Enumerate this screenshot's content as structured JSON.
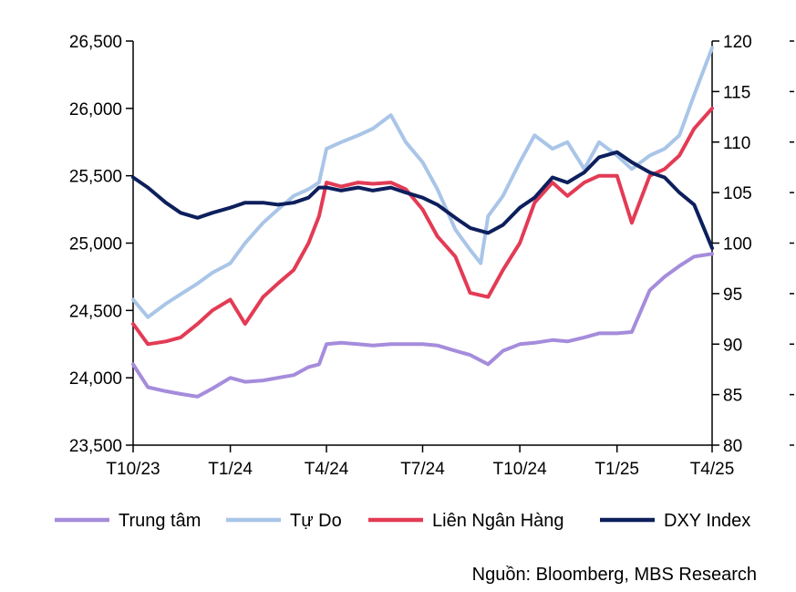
{
  "chart_data": {
    "type": "line",
    "title": "",
    "x_ticks": [
      "T10/23",
      "T1/24",
      "T4/24",
      "T7/24",
      "T10/24",
      "T1/25",
      "T4/25"
    ],
    "x_range": [
      "2023-10-01",
      "2025-04-01"
    ],
    "y_left": {
      "ticks": [
        "23,500",
        "24,000",
        "24,500",
        "25,000",
        "25,500",
        "26,000",
        "26,500"
      ],
      "min": 23500,
      "max": 26500
    },
    "y_right": {
      "ticks": [
        "80",
        "85",
        "90",
        "95",
        "100",
        "105",
        "110",
        "115",
        "120"
      ],
      "min": 80,
      "max": 120
    },
    "grid": false,
    "legend_position": "bottom",
    "series": [
      {
        "name": "Trung tâm",
        "axis": "left",
        "color": "#A58CDC",
        "x": [
          "2023-10-01",
          "2023-10-15",
          "2023-11-01",
          "2023-11-15",
          "2023-12-01",
          "2023-12-15",
          "2024-01-01",
          "2024-01-15",
          "2024-02-01",
          "2024-02-15",
          "2024-03-01",
          "2024-03-15",
          "2024-03-25",
          "2024-04-01",
          "2024-04-15",
          "2024-05-01",
          "2024-05-15",
          "2024-06-01",
          "2024-06-15",
          "2024-07-01",
          "2024-07-15",
          "2024-08-01",
          "2024-08-15",
          "2024-09-01",
          "2024-09-15",
          "2024-10-01",
          "2024-10-15",
          "2024-11-01",
          "2024-11-15",
          "2024-12-01",
          "2024-12-15",
          "2025-01-01",
          "2025-01-15",
          "2025-02-01",
          "2025-02-15",
          "2025-03-01",
          "2025-03-15",
          "2025-04-01"
        ],
        "values": [
          24100,
          23930,
          23900,
          23880,
          23860,
          23920,
          24000,
          23970,
          23980,
          24000,
          24020,
          24080,
          24100,
          24250,
          24260,
          24250,
          24240,
          24250,
          24250,
          24250,
          24240,
          24200,
          24170,
          24100,
          24200,
          24250,
          24260,
          24280,
          24270,
          24300,
          24330,
          24330,
          24340,
          24650,
          24750,
          24830,
          24900,
          24920
        ]
      },
      {
        "name": "Tự Do",
        "axis": "left",
        "color": "#A9C5E8",
        "x": [
          "2023-10-01",
          "2023-10-15",
          "2023-11-01",
          "2023-11-15",
          "2023-12-01",
          "2023-12-15",
          "2024-01-01",
          "2024-01-15",
          "2024-02-01",
          "2024-02-15",
          "2024-03-01",
          "2024-03-15",
          "2024-03-25",
          "2024-04-01",
          "2024-04-15",
          "2024-05-01",
          "2024-05-15",
          "2024-06-01",
          "2024-06-15",
          "2024-07-01",
          "2024-07-15",
          "2024-08-01",
          "2024-08-15",
          "2024-08-25",
          "2024-09-01",
          "2024-09-15",
          "2024-10-01",
          "2024-10-15",
          "2024-11-01",
          "2024-11-15",
          "2024-12-01",
          "2024-12-15",
          "2025-01-01",
          "2025-01-15",
          "2025-02-01",
          "2025-02-15",
          "2025-03-01",
          "2025-03-15",
          "2025-04-01"
        ],
        "values": [
          24580,
          24450,
          24550,
          24620,
          24700,
          24780,
          24850,
          25000,
          25150,
          25250,
          25350,
          25400,
          25450,
          25700,
          25750,
          25800,
          25850,
          25950,
          25750,
          25600,
          25400,
          25100,
          24950,
          24850,
          25200,
          25350,
          25600,
          25800,
          25700,
          25750,
          25550,
          25750,
          25650,
          25550,
          25650,
          25700,
          25800,
          26100,
          26450
        ]
      },
      {
        "name": "Liên Ngân Hàng",
        "axis": "left",
        "color": "#E33B55",
        "x": [
          "2023-10-01",
          "2023-10-15",
          "2023-11-01",
          "2023-11-15",
          "2023-12-01",
          "2023-12-15",
          "2024-01-01",
          "2024-01-15",
          "2024-02-01",
          "2024-02-15",
          "2024-03-01",
          "2024-03-15",
          "2024-03-25",
          "2024-04-01",
          "2024-04-15",
          "2024-05-01",
          "2024-05-15",
          "2024-06-01",
          "2024-06-15",
          "2024-07-01",
          "2024-07-15",
          "2024-08-01",
          "2024-08-15",
          "2024-09-01",
          "2024-09-15",
          "2024-10-01",
          "2024-10-15",
          "2024-11-01",
          "2024-11-15",
          "2024-12-01",
          "2024-12-15",
          "2025-01-01",
          "2025-01-15",
          "2025-02-01",
          "2025-02-15",
          "2025-03-01",
          "2025-03-15",
          "2025-04-01"
        ],
        "values": [
          24400,
          24250,
          24270,
          24300,
          24400,
          24500,
          24580,
          24400,
          24600,
          24700,
          24800,
          25000,
          25200,
          25450,
          25420,
          25450,
          25440,
          25450,
          25400,
          25250,
          25050,
          24900,
          24630,
          24600,
          24800,
          25000,
          25300,
          25450,
          25350,
          25450,
          25500,
          25500,
          25150,
          25500,
          25550,
          25650,
          25850,
          26000
        ]
      },
      {
        "name": "DXY Index",
        "axis": "right",
        "color": "#0D1F5C",
        "x": [
          "2023-10-01",
          "2023-10-15",
          "2023-11-01",
          "2023-11-15",
          "2023-12-01",
          "2023-12-15",
          "2024-01-01",
          "2024-01-15",
          "2024-02-01",
          "2024-02-15",
          "2024-03-01",
          "2024-03-15",
          "2024-03-25",
          "2024-04-01",
          "2024-04-15",
          "2024-05-01",
          "2024-05-15",
          "2024-06-01",
          "2024-06-15",
          "2024-07-01",
          "2024-07-15",
          "2024-08-01",
          "2024-08-15",
          "2024-09-01",
          "2024-09-15",
          "2024-10-01",
          "2024-10-15",
          "2024-11-01",
          "2024-11-15",
          "2024-12-01",
          "2024-12-15",
          "2025-01-01",
          "2025-01-15",
          "2025-02-01",
          "2025-02-15",
          "2025-03-01",
          "2025-03-15",
          "2025-04-01"
        ],
        "values": [
          106.5,
          105.5,
          104.0,
          103.0,
          102.5,
          103.0,
          103.5,
          104.0,
          104.0,
          103.8,
          104.0,
          104.5,
          105.5,
          105.5,
          105.2,
          105.5,
          105.2,
          105.5,
          105.0,
          104.5,
          103.8,
          102.5,
          101.5,
          101.0,
          101.8,
          103.5,
          104.5,
          106.5,
          106.0,
          107.0,
          108.5,
          109.0,
          108.0,
          107.0,
          106.5,
          105.0,
          103.8,
          99.5
        ]
      }
    ]
  },
  "source": "Nguồn: Bloomberg, MBS Research"
}
